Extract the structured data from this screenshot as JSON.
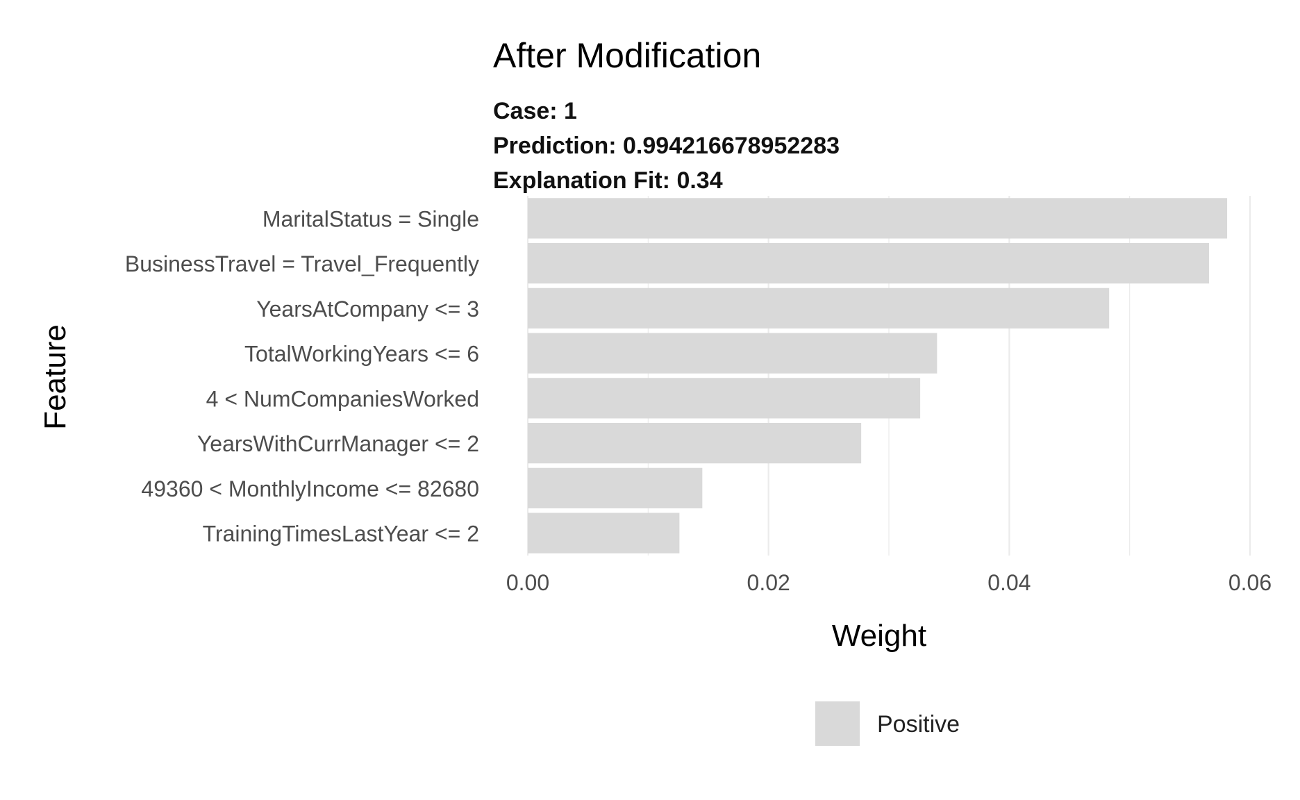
{
  "chart_data": {
    "type": "bar",
    "orientation": "horizontal",
    "title": "After Modification",
    "subtitle_lines": [
      "Case: 1",
      "Prediction: 0.994216678952283",
      "Explanation Fit: 0.34"
    ],
    "xlabel": "Weight",
    "ylabel": "Feature",
    "categories": [
      "MaritalStatus = Single",
      "BusinessTravel = Travel_Frequently",
      "YearsAtCompany <= 3",
      "TotalWorkingYears <= 6",
      "4 < NumCompaniesWorked",
      "YearsWithCurrManager <= 2",
      "49360 < MonthlyIncome <= 82680",
      "TrainingTimesLastYear <= 2"
    ],
    "series": [
      {
        "name": "Positive",
        "values": [
          0.0581,
          0.0566,
          0.0483,
          0.034,
          0.0326,
          0.0277,
          0.0145,
          0.0126
        ]
      }
    ],
    "xlim": [
      0,
      0.06
    ],
    "xticks": [
      "0.00",
      "0.02",
      "0.04",
      "0.06"
    ],
    "xtick_values": [
      0,
      0.02,
      0.04,
      0.06
    ],
    "grid": true,
    "legend_position": "bottom",
    "bar_color": "#d9d9d9",
    "grid_color": "#ebebeb"
  }
}
